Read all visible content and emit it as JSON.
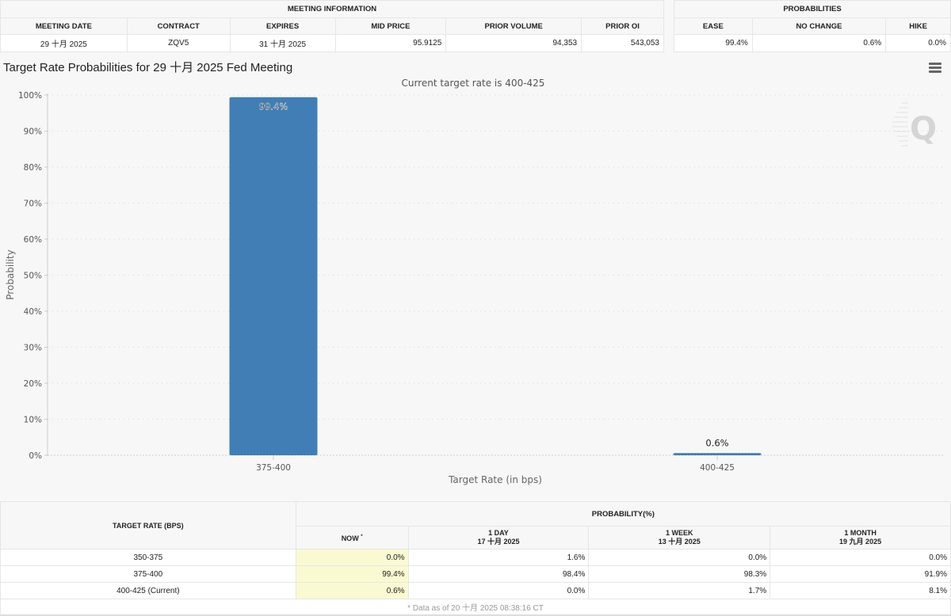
{
  "meeting_info": {
    "group_header": "MEETING INFORMATION",
    "columns": [
      "MEETING DATE",
      "CONTRACT",
      "EXPIRES",
      "MID PRICE",
      "PRIOR VOLUME",
      "PRIOR OI"
    ],
    "values": [
      "29 十月 2025",
      "ZQV5",
      "31 十月 2025",
      "95.9125",
      "94,353",
      "543,053"
    ]
  },
  "probabilities": {
    "group_header": "PROBABILITIES",
    "columns": [
      "EASE",
      "NO CHANGE",
      "HIKE"
    ],
    "values": [
      "99.4%",
      "0.6%",
      "0.0%"
    ]
  },
  "chart": {
    "title": "Target Rate Probabilities for 29 十月 2025 Fed Meeting",
    "menu_icon": "hamburger-menu-icon",
    "watermark": "Q"
  },
  "chart_data": {
    "type": "bar",
    "title": "Target Rate Probabilities for 29 十月 2025 Fed Meeting",
    "subtitle": "Current target rate is 400-425",
    "categories": [
      "375-400",
      "400-425"
    ],
    "values": [
      99.4,
      0.6
    ],
    "data_labels": [
      "99.4%",
      "0.6%"
    ],
    "xlabel": "Target Rate (in bps)",
    "ylabel": "Probability",
    "ylim": [
      0,
      100
    ],
    "yticks": [
      "0%",
      "10%",
      "20%",
      "30%",
      "40%",
      "50%",
      "60%",
      "70%",
      "80%",
      "90%",
      "100%"
    ],
    "grid": true,
    "bar_color": "#417EB5"
  },
  "rates_table": {
    "rate_header": "TARGET RATE (BPS)",
    "prob_header": "PROBABILITY(%)",
    "columns": [
      {
        "label": "NOW",
        "date": "",
        "marker": "*"
      },
      {
        "label": "1 DAY",
        "date": "17 十月 2025"
      },
      {
        "label": "1 WEEK",
        "date": "13 十月 2025"
      },
      {
        "label": "1 MONTH",
        "date": "19 九月 2025"
      }
    ],
    "rows": [
      {
        "rate": "350-375",
        "values": [
          "0.0%",
          "1.6%",
          "0.0%",
          "0.0%"
        ]
      },
      {
        "rate": "375-400",
        "values": [
          "99.4%",
          "98.4%",
          "98.3%",
          "91.9%"
        ]
      },
      {
        "rate": "400-425 (Current)",
        "values": [
          "0.6%",
          "0.0%",
          "1.7%",
          "8.1%"
        ]
      }
    ],
    "footer": "* Data as of 20 十月 2025 08:38:16 CT"
  }
}
